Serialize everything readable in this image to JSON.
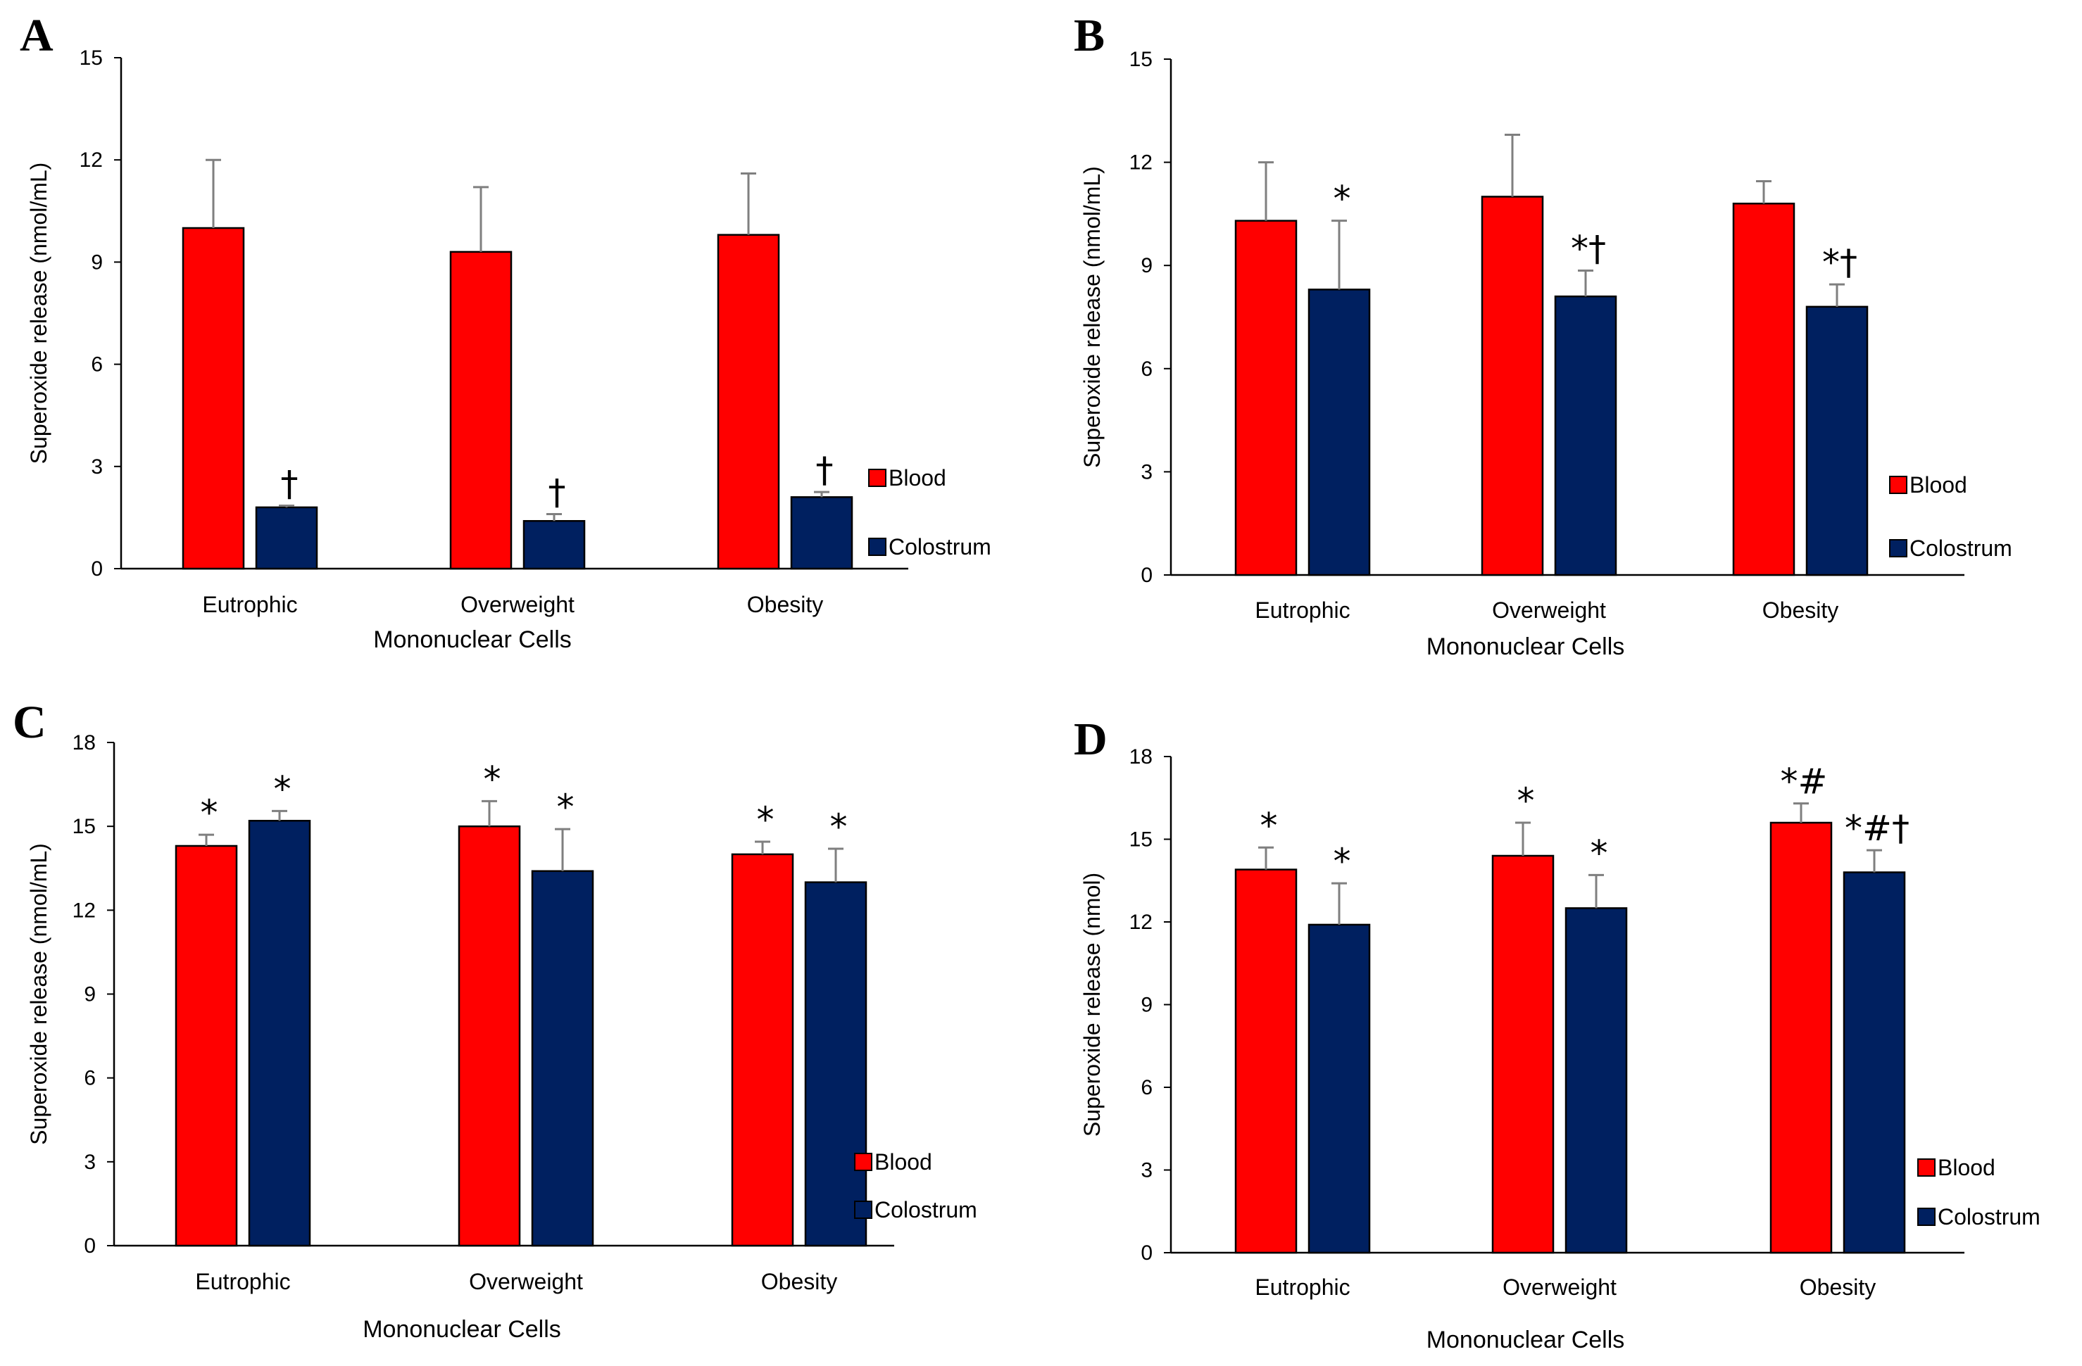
{
  "colors": {
    "blood": "#FF0000",
    "colostrum": "#002060",
    "error": "#7F7F7F",
    "axis": "#000000"
  },
  "chart_data": [
    {
      "panel": "A",
      "type": "bar",
      "categories": [
        "Eutrophic",
        "Overweight",
        "Obesity"
      ],
      "xlabel": "Mononuclear Cells",
      "ylabel": "Superoxide release (nmol/mL)",
      "ylim": [
        0,
        15
      ],
      "yticks": [
        "0",
        "3",
        "6",
        "9",
        "12",
        "15"
      ],
      "legend": [
        "Blood",
        "Colostrum"
      ],
      "series": [
        {
          "name": "Blood",
          "values": [
            10.0,
            9.3,
            9.8
          ],
          "errors": [
            2.0,
            1.9,
            1.8
          ],
          "sig": [
            "",
            "",
            ""
          ]
        },
        {
          "name": "Colostrum",
          "values": [
            1.8,
            1.4,
            2.1
          ],
          "errors": [
            0.05,
            0.2,
            0.15
          ],
          "sig": [
            "†",
            "†",
            "†"
          ]
        }
      ]
    },
    {
      "panel": "B",
      "type": "bar",
      "categories": [
        "Eutrophic",
        "Overweight",
        "Obesity"
      ],
      "xlabel": "Mononuclear Cells",
      "ylabel": "Superoxide release (nmol/mL)",
      "ylim": [
        0,
        15
      ],
      "yticks": [
        "0",
        "3",
        "6",
        "9",
        "12",
        "15"
      ],
      "legend": [
        "Blood",
        "Colostrum"
      ],
      "series": [
        {
          "name": "Blood",
          "values": [
            10.3,
            11.0,
            10.8
          ],
          "errors": [
            1.7,
            1.8,
            0.65
          ],
          "sig": [
            "",
            "",
            ""
          ]
        },
        {
          "name": "Colostrum",
          "values": [
            8.3,
            8.1,
            7.8
          ],
          "errors": [
            2.0,
            0.75,
            0.65
          ],
          "sig": [
            "*",
            "*†",
            "*†"
          ]
        }
      ]
    },
    {
      "panel": "C",
      "type": "bar",
      "categories": [
        "Eutrophic",
        "Overweight",
        "Obesity"
      ],
      "xlabel": "Mononuclear Cells",
      "ylabel": "Superoxide release (nmol/mL)",
      "ylim": [
        0,
        18
      ],
      "yticks": [
        "0",
        "3",
        "6",
        "9",
        "12",
        "15",
        "18"
      ],
      "legend": [
        "Blood",
        "Colostrum"
      ],
      "series": [
        {
          "name": "Blood",
          "values": [
            14.3,
            15.0,
            14.0
          ],
          "errors": [
            0.4,
            0.9,
            0.45
          ],
          "sig": [
            "*",
            "*",
            "*"
          ]
        },
        {
          "name": "Colostrum",
          "values": [
            15.2,
            13.4,
            13.0
          ],
          "errors": [
            0.35,
            1.5,
            1.2
          ],
          "sig": [
            "*",
            "*",
            "*"
          ]
        }
      ]
    },
    {
      "panel": "D",
      "type": "bar",
      "categories": [
        "Eutrophic",
        "Overweight",
        "Obesity"
      ],
      "xlabel": "Mononuclear Cells",
      "ylabel": "Superoxide release (nmol)",
      "ylim": [
        0,
        18
      ],
      "yticks": [
        "0",
        "3",
        "6",
        "9",
        "12",
        "15",
        "18"
      ],
      "legend": [
        "Blood",
        "Colostrum"
      ],
      "series": [
        {
          "name": "Blood",
          "values": [
            13.9,
            14.4,
            15.6
          ],
          "errors": [
            0.8,
            1.2,
            0.7
          ],
          "sig": [
            "*",
            "*",
            "*#"
          ]
        },
        {
          "name": "Colostrum",
          "values": [
            11.9,
            12.5,
            13.8
          ],
          "errors": [
            1.5,
            1.2,
            0.8
          ],
          "sig": [
            "*",
            "*",
            "*#†"
          ]
        }
      ]
    }
  ]
}
